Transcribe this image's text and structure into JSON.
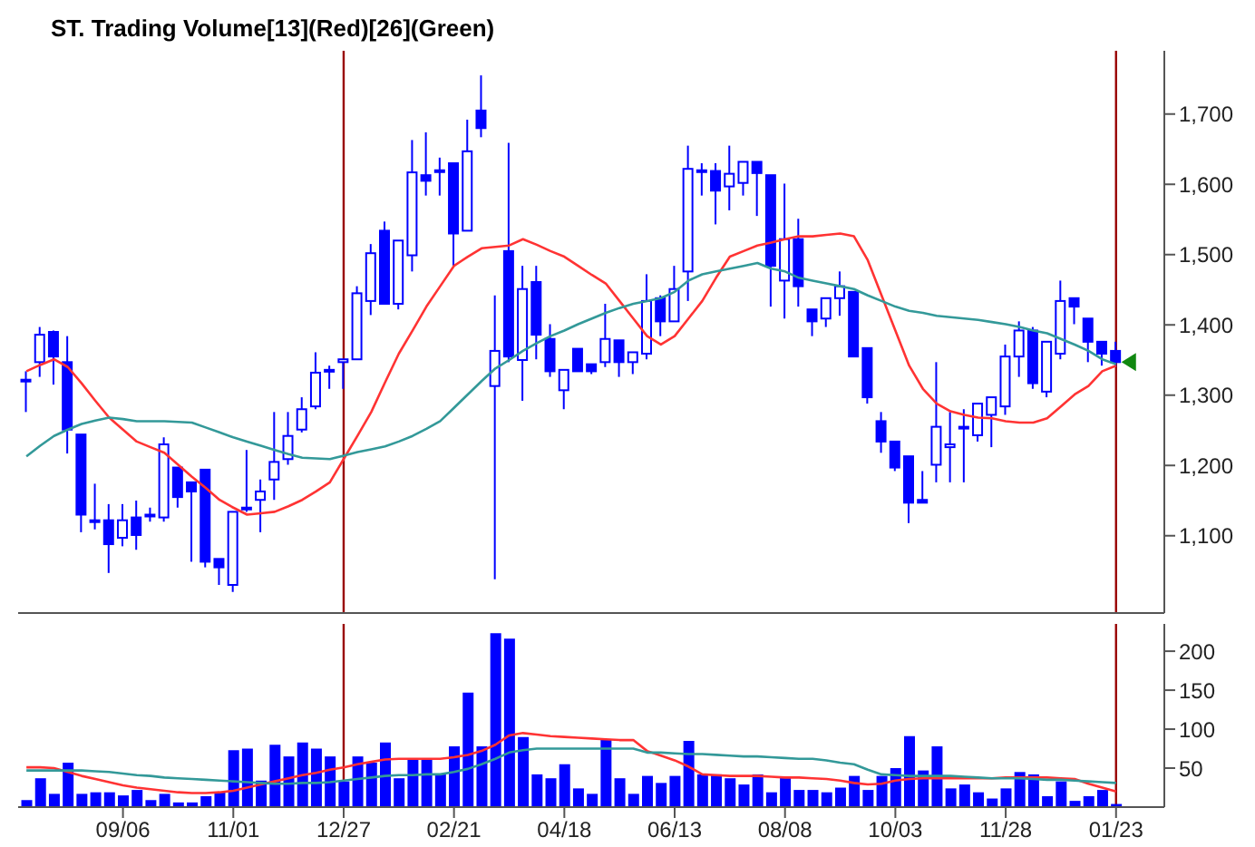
{
  "chart_data": [
    {
      "type": "candlestick",
      "title": "ST. Trading Volume[13](Red)[26](Green)",
      "color": "#0000ff",
      "tick_labels": "y",
      "categories": [
        null,
        null,
        null,
        null,
        null,
        null,
        null,
        "09/06",
        null,
        null,
        null,
        null,
        null,
        null,
        null,
        "11/01",
        null,
        null,
        null,
        null,
        null,
        null,
        null,
        "12/27",
        null,
        null,
        null,
        null,
        null,
        null,
        null,
        "02/21",
        null,
        null,
        null,
        null,
        null,
        null,
        null,
        "04/18",
        null,
        null,
        null,
        null,
        null,
        null,
        null,
        "06/13",
        null,
        null,
        null,
        null,
        null,
        null,
        null,
        "08/08",
        null,
        null,
        null,
        null,
        null,
        null,
        null,
        "10/03",
        null,
        null,
        null,
        null,
        null,
        null,
        null,
        "11/28",
        null,
        null,
        null,
        null,
        null,
        null,
        null,
        "01/23"
      ],
      "ohlc": [
        [
          1320,
          1334,
          1276,
          1322
        ],
        [
          1347,
          1397,
          1326,
          1386
        ],
        [
          1390,
          1392,
          1315,
          1355
        ],
        [
          1347,
          1384,
          1217,
          1251
        ],
        [
          1244,
          1244,
          1105,
          1130
        ],
        [
          1122,
          1174,
          1109,
          1120
        ],
        [
          1122,
          1145,
          1047,
          1088
        ],
        [
          1097,
          1145,
          1085,
          1122
        ],
        [
          1126,
          1150,
          1080,
          1101
        ],
        [
          1130,
          1140,
          1120,
          1128
        ],
        [
          1126,
          1240,
          1120,
          1230
        ],
        [
          1197,
          1197,
          1140,
          1155
        ],
        [
          1176,
          1176,
          1063,
          1163
        ],
        [
          1194,
          1194,
          1055,
          1063
        ],
        [
          1067,
          1067,
          1030,
          1055
        ],
        [
          1030,
          1134,
          1020,
          1134
        ],
        [
          1138,
          1222,
          1134,
          1140
        ],
        [
          1151,
          1180,
          1105,
          1163
        ],
        [
          1180,
          1276,
          1151,
          1205
        ],
        [
          1209,
          1276,
          1201,
          1242
        ],
        [
          1251,
          1297,
          1247,
          1280
        ],
        [
          1284,
          1361,
          1280,
          1332
        ],
        [
          1334,
          1342,
          1309,
          1336
        ],
        [
          1347,
          1351,
          1309,
          1351
        ],
        [
          1351,
          1455,
          1351,
          1445
        ],
        [
          1434,
          1515,
          1414,
          1502
        ],
        [
          1534,
          1547,
          1430,
          1430
        ],
        [
          1430,
          1520,
          1422,
          1520
        ],
        [
          1499,
          1663,
          1476,
          1617
        ],
        [
          1613,
          1674,
          1584,
          1605
        ],
        [
          1620,
          1638,
          1584,
          1620
        ],
        [
          1630,
          1630,
          1484,
          1530
        ],
        [
          1534,
          1692,
          1534,
          1647
        ],
        [
          1705,
          1755,
          1667,
          1680
        ],
        [
          1313,
          1442,
          1038,
          1363
        ],
        [
          1505,
          1659,
          1347,
          1355
        ],
        [
          1350,
          1484,
          1292,
          1451
        ],
        [
          1461,
          1484,
          1351,
          1386
        ],
        [
          1380,
          1401,
          1326,
          1334
        ],
        [
          1307,
          1336,
          1280,
          1336
        ],
        [
          1366,
          1366,
          1334,
          1334
        ],
        [
          1344,
          1344,
          1330,
          1334
        ],
        [
          1347,
          1430,
          1340,
          1380
        ],
        [
          1378,
          1378,
          1326,
          1347
        ],
        [
          1347,
          1361,
          1330,
          1361
        ],
        [
          1359,
          1472,
          1351,
          1434
        ],
        [
          1438,
          1442,
          1384,
          1405
        ],
        [
          1405,
          1484,
          1405,
          1451
        ],
        [
          1476,
          1655,
          1434,
          1622
        ],
        [
          1620,
          1630,
          1584,
          1620
        ],
        [
          1619,
          1630,
          1543,
          1591
        ],
        [
          1597,
          1655,
          1563,
          1615
        ],
        [
          1602,
          1632,
          1584,
          1632
        ],
        [
          1632,
          1632,
          1555,
          1616
        ],
        [
          1613,
          1613,
          1426,
          1484
        ],
        [
          1463,
          1601,
          1409,
          1522
        ],
        [
          1522,
          1551,
          1426,
          1455
        ],
        [
          1422,
          1422,
          1384,
          1405
        ],
        [
          1409,
          1438,
          1397,
          1438
        ],
        [
          1438,
          1476,
          1413,
          1455
        ],
        [
          1447,
          1447,
          1355,
          1355
        ],
        [
          1367,
          1367,
          1288,
          1297
        ],
        [
          1263,
          1276,
          1218,
          1234
        ],
        [
          1234,
          1234,
          1192,
          1197
        ],
        [
          1213,
          1213,
          1118,
          1147
        ],
        [
          1151,
          1192,
          1147,
          1147
        ],
        [
          1201,
          1347,
          1176,
          1255
        ],
        [
          1226,
          1276,
          1176,
          1230
        ],
        [
          1253,
          1280,
          1176,
          1255
        ],
        [
          1243,
          1288,
          1234,
          1288
        ],
        [
          1272,
          1297,
          1226,
          1297
        ],
        [
          1284,
          1372,
          1272,
          1355
        ],
        [
          1355,
          1405,
          1326,
          1392
        ],
        [
          1392,
          1397,
          1309,
          1317
        ],
        [
          1305,
          1376,
          1297,
          1376
        ],
        [
          1359,
          1463,
          1351,
          1434
        ],
        [
          1438,
          1438,
          1401,
          1426
        ],
        [
          1409,
          1409,
          1347,
          1376
        ],
        [
          1376,
          1376,
          1342,
          1359
        ],
        [
          1363,
          1376,
          1340,
          1347
        ]
      ],
      "series": [
        {
          "type": "line",
          "color": "#ff3333",
          "values": [
            1334,
            1343,
            1351,
            1340,
            1317,
            1292,
            1268,
            1251,
            1234,
            1226,
            1218,
            1201,
            1184,
            1168,
            1151,
            1140,
            1130,
            1132,
            1134,
            1142,
            1151,
            1163,
            1176,
            1209,
            1242,
            1276,
            1318,
            1359,
            1392,
            1426,
            1455,
            1484,
            1497,
            1509,
            1511,
            1513,
            1522,
            1514,
            1505,
            1497,
            1484,
            1471,
            1459,
            1434,
            1409,
            1384,
            1372,
            1384,
            1409,
            1434,
            1467,
            1497,
            1505,
            1513,
            1517,
            1522,
            1526,
            1526,
            1528,
            1530,
            1526,
            1492,
            1442,
            1392,
            1342,
            1309,
            1288,
            1277,
            1272,
            1268,
            1267,
            1263,
            1261,
            1261,
            1267,
            1284,
            1301,
            1313,
            1334,
            1342
          ]
        },
        {
          "type": "line",
          "color": "#339999",
          "values": [
            1213,
            1228,
            1242,
            1251,
            1259,
            1264,
            1268,
            1266,
            1263,
            1263,
            1263,
            1262,
            1261,
            1254,
            1247,
            1240,
            1234,
            1228,
            1222,
            1216,
            1211,
            1210,
            1209,
            1214,
            1219,
            1223,
            1227,
            1234,
            1242,
            1252,
            1263,
            1282,
            1301,
            1320,
            1338,
            1350,
            1363,
            1374,
            1384,
            1392,
            1401,
            1409,
            1417,
            1424,
            1430,
            1434,
            1438,
            1447,
            1463,
            1472,
            1476,
            1480,
            1484,
            1488,
            1480,
            1476,
            1467,
            1463,
            1459,
            1455,
            1451,
            1442,
            1434,
            1426,
            1420,
            1417,
            1413,
            1411,
            1409,
            1407,
            1404,
            1401,
            1397,
            1392,
            1388,
            1380,
            1372,
            1363,
            1351,
            1344
          ]
        }
      ],
      "ylim": [
        990,
        1790
      ],
      "yticks": [
        {
          "value": 1100,
          "label": "1,100"
        },
        {
          "value": 1200,
          "label": "1,200"
        },
        {
          "value": 1300,
          "label": "1,300"
        },
        {
          "value": 1400,
          "label": "1,400"
        },
        {
          "value": 1500,
          "label": "1,500"
        },
        {
          "value": 1600,
          "label": "1,600"
        },
        {
          "value": 1700,
          "label": "1,700"
        }
      ],
      "ref_lines": [
        {
          "axis": "x",
          "value": "12/27",
          "color": "#990000"
        },
        {
          "axis": "x",
          "value": "01/23",
          "color": "#990000"
        }
      ]
    },
    {
      "type": "bar",
      "categories": [
        null,
        null,
        null,
        null,
        null,
        null,
        null,
        "09/06",
        null,
        null,
        null,
        null,
        null,
        null,
        null,
        "11/01",
        null,
        null,
        null,
        null,
        null,
        null,
        null,
        "12/27",
        null,
        null,
        null,
        null,
        null,
        null,
        null,
        "02/21",
        null,
        null,
        null,
        null,
        null,
        null,
        null,
        "04/18",
        null,
        null,
        null,
        null,
        null,
        null,
        null,
        "06/13",
        null,
        null,
        null,
        null,
        null,
        null,
        null,
        "08/08",
        null,
        null,
        null,
        null,
        null,
        null,
        null,
        "10/03",
        null,
        null,
        null,
        null,
        null,
        null,
        null,
        "11/28",
        null,
        null,
        null,
        null,
        null,
        null,
        null,
        "01/23"
      ],
      "series": [
        {
          "type": "bar",
          "color": "#0000ff",
          "values": [
            9,
            37,
            17,
            57,
            17,
            19,
            19,
            15,
            22,
            9,
            17,
            6,
            6,
            14,
            19,
            73,
            75,
            34,
            80,
            65,
            83,
            75,
            65,
            33,
            65,
            57,
            83,
            37,
            61,
            61,
            43,
            78,
            147,
            78,
            223,
            216,
            90,
            42,
            37,
            55,
            24,
            17,
            86,
            37,
            17,
            40,
            31,
            40,
            85,
            42,
            42,
            37,
            29,
            42,
            19,
            38,
            22,
            22,
            19,
            25,
            40,
            22,
            40,
            50,
            91,
            47,
            78,
            24,
            29,
            19,
            11,
            24,
            45,
            42,
            14,
            33,
            8,
            14,
            22,
            4
          ]
        },
        {
          "type": "line",
          "color": "#ff3333",
          "values": [
            51,
            51,
            50,
            45,
            40,
            36,
            32,
            28,
            25,
            23,
            21,
            19,
            18,
            18,
            19,
            21,
            25,
            29,
            33,
            37,
            41,
            44,
            48,
            51,
            55,
            58,
            61,
            62,
            62,
            62,
            62,
            64,
            67,
            72,
            80,
            92,
            95,
            93,
            91,
            90,
            89,
            88,
            87,
            86,
            86,
            72,
            66,
            60,
            52,
            42,
            41,
            40,
            40,
            40,
            39,
            38,
            38,
            37,
            36,
            34,
            31,
            29,
            30,
            34,
            36,
            37,
            37,
            37,
            37,
            37,
            37,
            38,
            38,
            38,
            38,
            37,
            36,
            30,
            25,
            20
          ]
        },
        {
          "type": "line",
          "color": "#339999",
          "values": [
            47,
            47,
            47,
            47,
            47,
            46,
            45,
            43,
            41,
            40,
            38,
            37,
            36,
            35,
            34,
            33,
            32,
            31,
            30,
            30,
            31,
            31,
            32,
            34,
            36,
            38,
            40,
            41,
            41,
            42,
            42,
            45,
            49,
            55,
            62,
            70,
            73,
            75,
            75,
            75,
            75,
            75,
            75,
            75,
            75,
            70,
            70,
            69,
            68,
            68,
            67,
            66,
            65,
            65,
            64,
            63,
            62,
            62,
            60,
            57,
            55,
            48,
            42,
            41,
            40,
            40,
            40,
            40,
            39,
            38,
            37,
            37,
            37,
            36,
            35,
            35,
            34,
            33,
            32,
            31
          ]
        }
      ],
      "ylim": [
        0,
        235
      ],
      "yticks": [
        50,
        100,
        150,
        200
      ],
      "ref_lines": [
        {
          "axis": "x",
          "value": "12/27",
          "color": "#990000"
        },
        {
          "axis": "x",
          "value": "01/23",
          "color": "#990000"
        }
      ]
    }
  ]
}
